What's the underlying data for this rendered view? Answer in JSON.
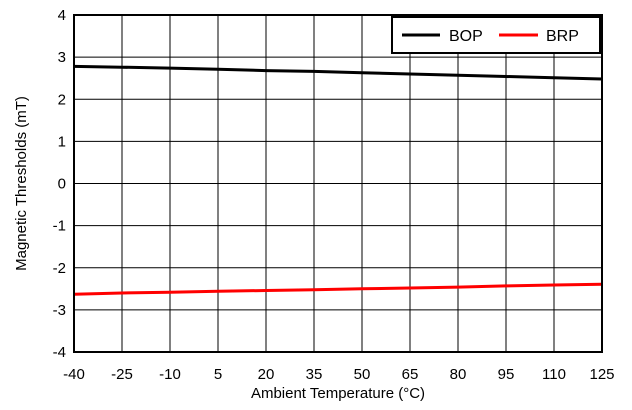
{
  "chart_data": {
    "type": "line",
    "title": "",
    "xlabel": "Ambient Temperature (°C)",
    "ylabel": "Magnetic Thresholds (mT)",
    "xlim": [
      -40,
      125
    ],
    "ylim": [
      -4,
      4
    ],
    "x_ticks": [
      -40,
      -25,
      -10,
      5,
      20,
      35,
      50,
      65,
      80,
      95,
      110,
      125
    ],
    "y_ticks": [
      4,
      3,
      2,
      1,
      0,
      -1,
      -2,
      -3,
      -4
    ],
    "grid": true,
    "legend_position": "top-right",
    "x": [
      -40,
      -25,
      -10,
      5,
      20,
      35,
      50,
      65,
      80,
      95,
      110,
      125
    ],
    "series": [
      {
        "name": "BOP",
        "color": "#000000",
        "values": [
          2.78,
          2.76,
          2.74,
          2.71,
          2.68,
          2.66,
          2.63,
          2.6,
          2.57,
          2.54,
          2.51,
          2.48
        ]
      },
      {
        "name": "BRP",
        "color": "#ff0000",
        "values": [
          -2.63,
          -2.6,
          -2.58,
          -2.56,
          -2.54,
          -2.52,
          -2.5,
          -2.48,
          -2.46,
          -2.43,
          -2.41,
          -2.39
        ]
      }
    ]
  }
}
